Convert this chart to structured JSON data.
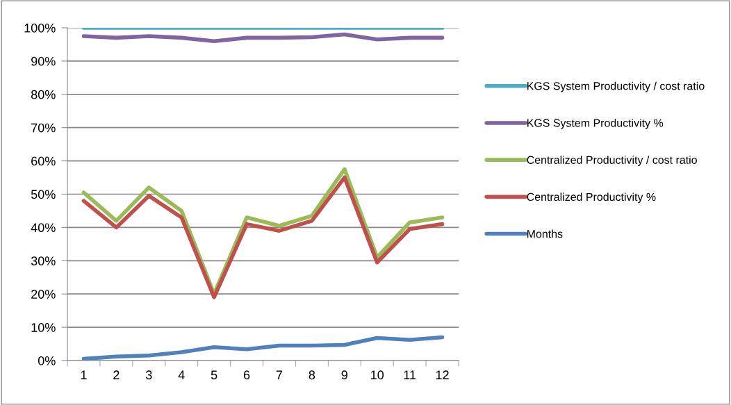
{
  "chart_data": {
    "type": "line",
    "categories": [
      "1",
      "2",
      "3",
      "4",
      "5",
      "6",
      "7",
      "8",
      "9",
      "10",
      "11",
      "12"
    ],
    "series": [
      {
        "name": "KGS System Productivity / cost ratio",
        "color": "#4bacc6",
        "values": [
          100,
          100,
          100,
          100,
          100,
          100,
          100,
          100,
          100,
          100,
          100,
          100
        ]
      },
      {
        "name": "KGS System Productivity %",
        "color": "#8064a2",
        "values": [
          97.5,
          97,
          97.5,
          97,
          96,
          97,
          97,
          97.2,
          98,
          96.5,
          97,
          97
        ]
      },
      {
        "name": "Centralized Productivity / cost ratio",
        "color": "#9bbb59",
        "values": [
          50.5,
          42,
          52,
          45,
          20,
          43,
          40.5,
          43.5,
          57.5,
          31,
          41.5,
          43
        ]
      },
      {
        "name": "Centralized Productivity %",
        "color": "#c0504d",
        "values": [
          48,
          40,
          49.5,
          43,
          19,
          41,
          39,
          42,
          55,
          29.5,
          39.5,
          41
        ]
      },
      {
        "name": "Months",
        "color": "#4f81bd",
        "values": [
          0.5,
          1.2,
          1.5,
          2.5,
          4,
          3.4,
          4.5,
          4.5,
          4.7,
          6.8,
          6.2,
          7
        ]
      }
    ],
    "ylim": [
      0,
      100
    ],
    "yticks": [
      {
        "value": 0,
        "label": "0%"
      },
      {
        "value": 10,
        "label": "10%"
      },
      {
        "value": 20,
        "label": "20%"
      },
      {
        "value": 30,
        "label": "30%"
      },
      {
        "value": 40,
        "label": "40%"
      },
      {
        "value": 50,
        "label": "50%"
      },
      {
        "value": 60,
        "label": "60%"
      },
      {
        "value": 70,
        "label": "70%"
      },
      {
        "value": 80,
        "label": "80%"
      },
      {
        "value": 90,
        "label": "90%"
      },
      {
        "value": 100,
        "label": "100%"
      }
    ],
    "grid": "y",
    "legend": "right",
    "marker": "none",
    "line_style": "solid"
  }
}
